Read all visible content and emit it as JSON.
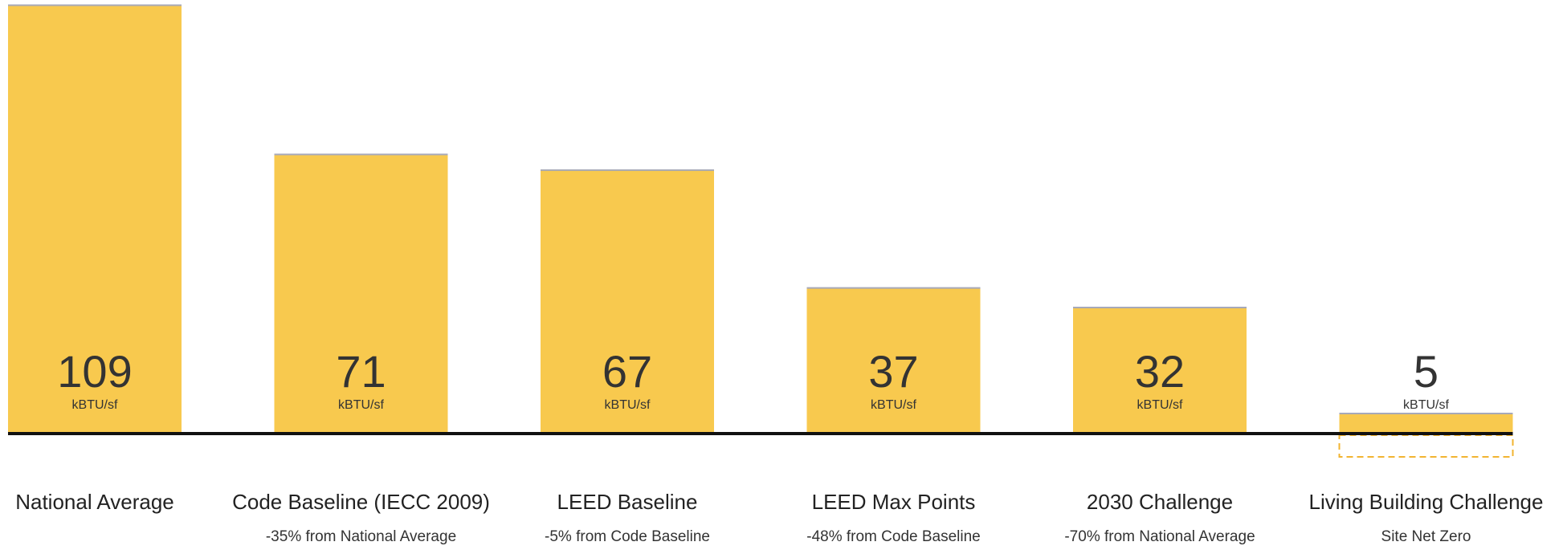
{
  "chart_data": {
    "type": "bar",
    "categories": [
      "National Average",
      "Code Baseline (IECC 2009)",
      "LEED Baseline",
      "LEED Max Points",
      "2030 Challenge",
      "Living Building Challenge"
    ],
    "notes": [
      null,
      "-35% from National Average",
      "-5% from Code Baseline",
      "-48% from Code Baseline",
      "-70% from National Average",
      "Site Net Zero"
    ],
    "values": [
      109,
      71,
      67,
      37,
      32,
      5
    ],
    "unit": "kBTU/sf",
    "color": "#f8c94e",
    "ylim": [
      0,
      110
    ],
    "net_zero_marker": {
      "category_index": 5,
      "color": "#f2b431"
    }
  }
}
